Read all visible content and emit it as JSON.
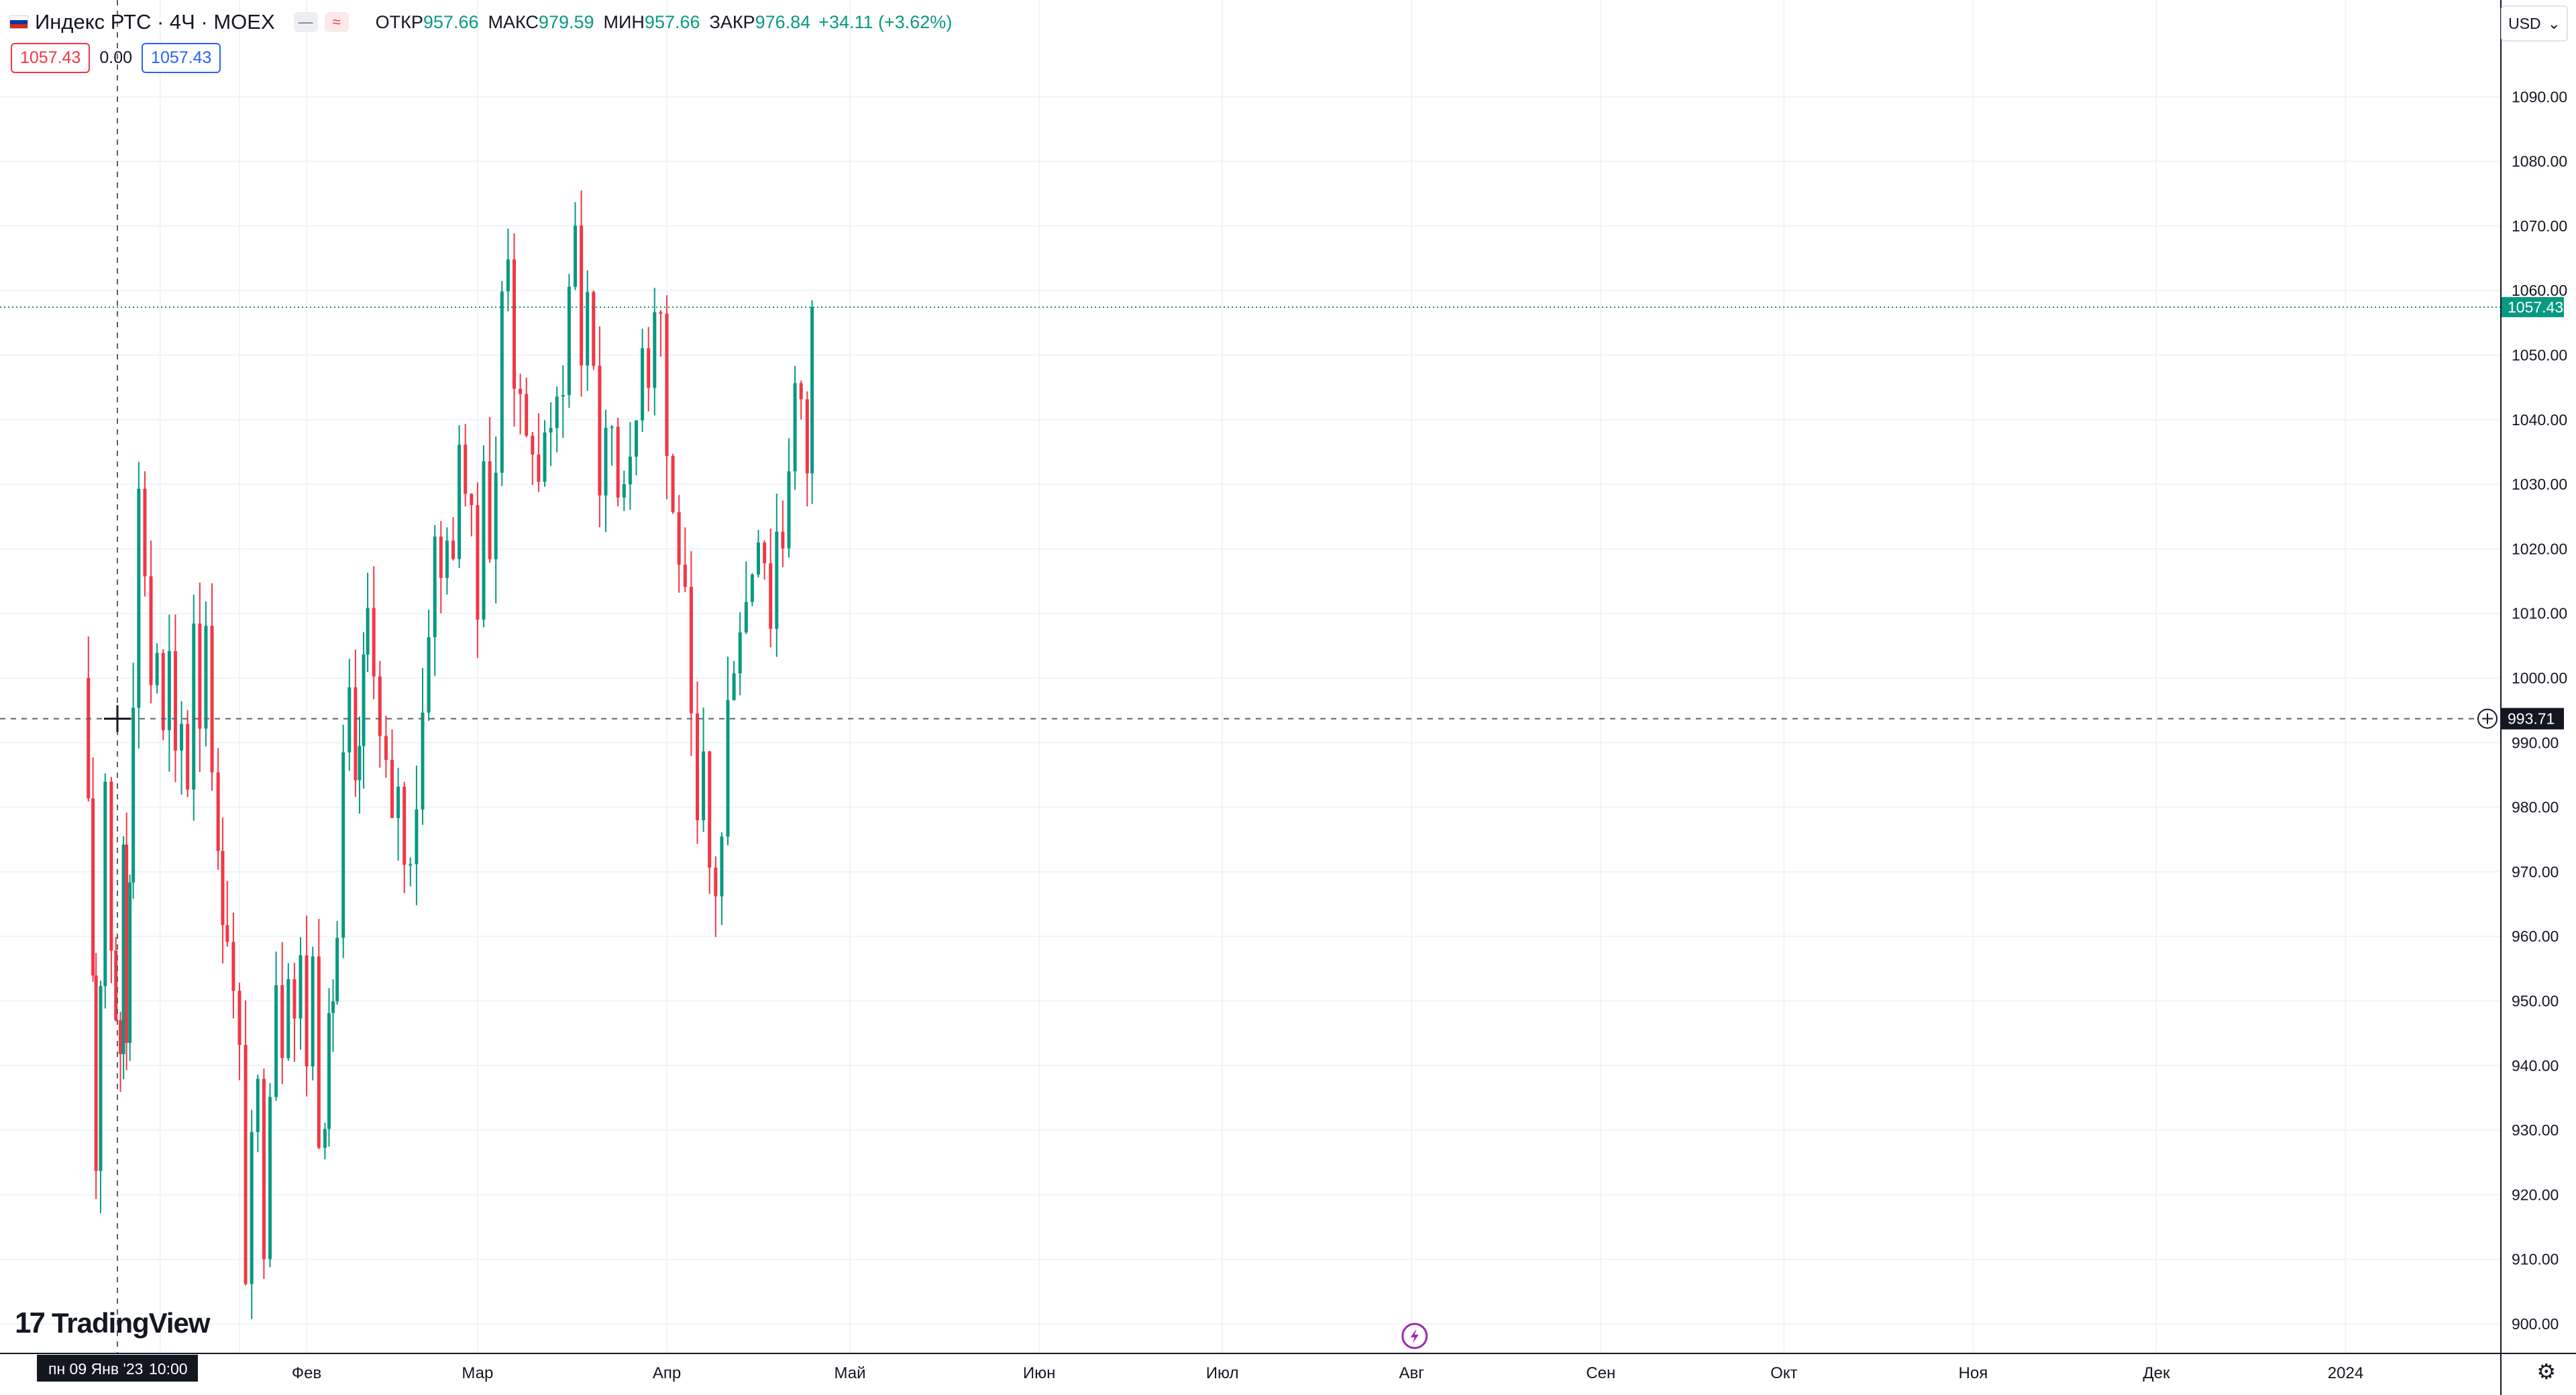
{
  "header": {
    "symbol": "Индекс РТС · 4Ч · MOEX",
    "ohlc": [
      {
        "label": "ОТКР",
        "value": "957.66"
      },
      {
        "label": "МАКС",
        "value": "979.59"
      },
      {
        "label": "МИН",
        "value": "957.66"
      },
      {
        "label": "ЗАКР",
        "value": "976.84"
      }
    ],
    "change": "+34.11 (+3.62%)",
    "sell_price": "1057.43",
    "spread": "0.00",
    "buy_price": "1057.43",
    "currency": "USD"
  },
  "crosshair": {
    "time_label": "пн 09 Янв '23",
    "time_value": "10:00",
    "price_label": "993.71"
  },
  "last_price_label": "1057.43",
  "logo_text": "TradingView",
  "colors": {
    "up": "#089981",
    "down": "#f23645",
    "grid": "#f0f3fa",
    "axis_text": "#131722",
    "last_price_badge": "#089981",
    "event_icon": "#9c27b0"
  },
  "chart_data": {
    "type": "candlestick",
    "interval": "4H",
    "y_tick_labels": [
      "900.00",
      "910.00",
      "920.00",
      "930.00",
      "940.00",
      "950.00",
      "960.00",
      "970.00",
      "980.00",
      "990.00",
      "1000.00",
      "1010.00",
      "1020.00",
      "1030.00",
      "1040.00",
      "1050.00",
      "1060.00",
      "1070.00",
      "1080.00",
      "1090.00"
    ],
    "ylim": [
      896,
      1097
    ],
    "x_tick_labels": [
      "Фев",
      "Мар",
      "Апр",
      "Май",
      "Июн",
      "Июл",
      "Авг",
      "Сен",
      "Окт",
      "Ноя",
      "Дек",
      "2024"
    ],
    "x_ticks_day": [
      31,
      59,
      90,
      120,
      151,
      181,
      212,
      243,
      273,
      304,
      334,
      365
    ],
    "x_range_day": [
      -6,
      391
    ],
    "last_price": 1057.43,
    "crosshair_price": 993.71,
    "anchors": [
      [
        -5.5,
        1000
      ],
      [
        -4,
        955
      ],
      [
        -3.5,
        925
      ],
      [
        -2,
        985
      ],
      [
        -1,
        960
      ],
      [
        0.5,
        938
      ],
      [
        1,
        975
      ],
      [
        1.5,
        945
      ],
      [
        2.6,
        1000
      ],
      [
        3.5,
        1028
      ],
      [
        4.5,
        1018
      ],
      [
        5.5,
        1000
      ],
      [
        6.5,
        1005
      ],
      [
        7.5,
        990
      ],
      [
        8.5,
        1002
      ],
      [
        9.5,
        985
      ],
      [
        10.5,
        992
      ],
      [
        11.5,
        985
      ],
      [
        12.5,
        1010
      ],
      [
        13.5,
        995
      ],
      [
        14.5,
        1010
      ],
      [
        15.5,
        990
      ],
      [
        16.5,
        970
      ],
      [
        18,
        962
      ],
      [
        19,
        950
      ],
      [
        20,
        940
      ],
      [
        21,
        910
      ],
      [
        22,
        925
      ],
      [
        23,
        935
      ],
      [
        24,
        915
      ],
      [
        25,
        940
      ],
      [
        26,
        955
      ],
      [
        27,
        945
      ],
      [
        28,
        958
      ],
      [
        29,
        948
      ],
      [
        30,
        955
      ],
      [
        31,
        942
      ],
      [
        32,
        956
      ],
      [
        33,
        932
      ],
      [
        34,
        935
      ],
      [
        36,
        960
      ],
      [
        37,
        985
      ],
      [
        38,
        995
      ],
      [
        39,
        980
      ],
      [
        41,
        1010
      ],
      [
        42,
        1005
      ],
      [
        43,
        990
      ],
      [
        44,
        985
      ],
      [
        45,
        975
      ],
      [
        46,
        985
      ],
      [
        47,
        970
      ],
      [
        48,
        975
      ],
      [
        49,
        982
      ],
      [
        50,
        995
      ],
      [
        51,
        1010
      ],
      [
        52,
        1020
      ],
      [
        53,
        1015
      ],
      [
        54,
        1025
      ],
      [
        55,
        1015
      ],
      [
        56,
        1040
      ],
      [
        57,
        1030
      ],
      [
        58,
        1022
      ],
      [
        59,
        1010
      ],
      [
        60,
        1038
      ],
      [
        61,
        1020
      ],
      [
        62,
        1030
      ],
      [
        63,
        1060
      ],
      [
        64,
        1068
      ],
      [
        65,
        1048
      ],
      [
        66,
        1040
      ],
      [
        67,
        1035
      ],
      [
        68,
        1038
      ],
      [
        69,
        1030
      ],
      [
        70,
        1040
      ],
      [
        71,
        1035
      ],
      [
        72,
        1042
      ],
      [
        73,
        1048
      ],
      [
        74,
        1060
      ],
      [
        75,
        1070
      ],
      [
        76,
        1050
      ],
      [
        77,
        1060
      ],
      [
        78,
        1050
      ],
      [
        79,
        1030
      ],
      [
        80,
        1035
      ],
      [
        81,
        1040
      ],
      [
        82,
        1030
      ],
      [
        83,
        1035
      ],
      [
        84,
        1030
      ],
      [
        85,
        1040
      ],
      [
        86,
        1055
      ],
      [
        87,
        1048
      ],
      [
        88,
        1060
      ],
      [
        89,
        1057
      ],
      [
        90,
        1035
      ],
      [
        91,
        1025
      ],
      [
        92,
        1020
      ],
      [
        93,
        1010
      ],
      [
        94,
        990
      ],
      [
        95,
        975
      ],
      [
        96,
        985
      ],
      [
        97,
        970
      ],
      [
        98,
        968
      ],
      [
        99,
        975
      ],
      [
        100,
        995
      ],
      [
        101,
        1005
      ],
      [
        102,
        1010
      ],
      [
        103,
        1012
      ],
      [
        104,
        1018
      ],
      [
        105,
        1025
      ],
      [
        106,
        1020
      ],
      [
        107,
        1010
      ],
      [
        108,
        1023
      ],
      [
        109,
        1022
      ],
      [
        110,
        1035
      ],
      [
        111,
        1045
      ],
      [
        112,
        1040
      ],
      [
        113,
        1033
      ],
      [
        113.8,
        1057.43
      ]
    ]
  }
}
